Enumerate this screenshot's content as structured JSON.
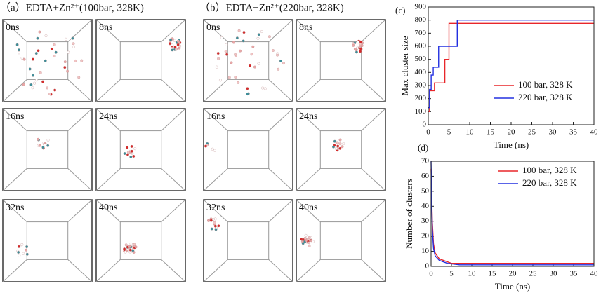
{
  "panels": [
    {
      "title": "（a）EDTA+Zn²⁺(100bar, 328K)",
      "snapshots": [
        "0ns",
        "8ns",
        "16ns",
        "24ns",
        "32ns",
        "40ns"
      ]
    },
    {
      "title": "（b）EDTA+Zn²⁺(220bar, 328K)",
      "snapshots": [
        "0ns",
        "8ns",
        "16ns",
        "24ns",
        "32ns",
        "40ns"
      ]
    }
  ],
  "chart_data": [
    {
      "type": "line",
      "panel_label": "(c)",
      "x_label": "Time (ns)",
      "y_label": "Max cluster size",
      "xlim": [
        0,
        40
      ],
      "xticks": [
        0,
        5,
        10,
        15,
        20,
        25,
        30,
        35,
        40
      ],
      "ylim": [
        0,
        900
      ],
      "yticks": [
        0,
        100,
        200,
        300,
        400,
        500,
        600,
        700,
        800,
        900
      ],
      "legend_position": "right",
      "series": [
        {
          "name": "100 bar, 328 K",
          "color": "#e8262a",
          "x": [
            0,
            0.3,
            0.3,
            1.5,
            1.5,
            4,
            4,
            5,
            5,
            40
          ],
          "values": [
            100,
            100,
            260,
            260,
            320,
            320,
            500,
            500,
            775,
            775
          ]
        },
        {
          "name": "220 bar, 328 K",
          "color": "#2330e0",
          "x": [
            0,
            0.3,
            0.3,
            0.7,
            0.7,
            1.2,
            1.2,
            2.5,
            2.5,
            7,
            7,
            40
          ],
          "values": [
            130,
            130,
            270,
            270,
            380,
            380,
            440,
            440,
            600,
            600,
            800,
            800
          ]
        }
      ]
    },
    {
      "type": "line",
      "panel_label": "(d)",
      "x_label": "Time (ns)",
      "y_label": "Number of clusters",
      "xlim": [
        0,
        40
      ],
      "xticks": [
        0,
        5,
        10,
        15,
        20,
        25,
        30,
        35,
        40
      ],
      "ylim": [
        0,
        70
      ],
      "yticks": [
        0,
        10,
        20,
        30,
        40,
        50,
        60,
        70
      ],
      "legend_position": "upper right",
      "series": [
        {
          "name": "100 bar, 328 K",
          "color": "#e8262a",
          "x": [
            0,
            0.3,
            0.6,
            1,
            2,
            3,
            5,
            40
          ],
          "values": [
            65,
            30,
            15,
            9,
            5,
            4,
            2,
            2
          ]
        },
        {
          "name": "220 bar, 328 K",
          "color": "#2330e0",
          "x": [
            0,
            0.3,
            0.6,
            1,
            2,
            4,
            7,
            40
          ],
          "values": [
            70,
            25,
            12,
            7,
            4,
            2,
            1,
            1
          ]
        }
      ]
    }
  ]
}
